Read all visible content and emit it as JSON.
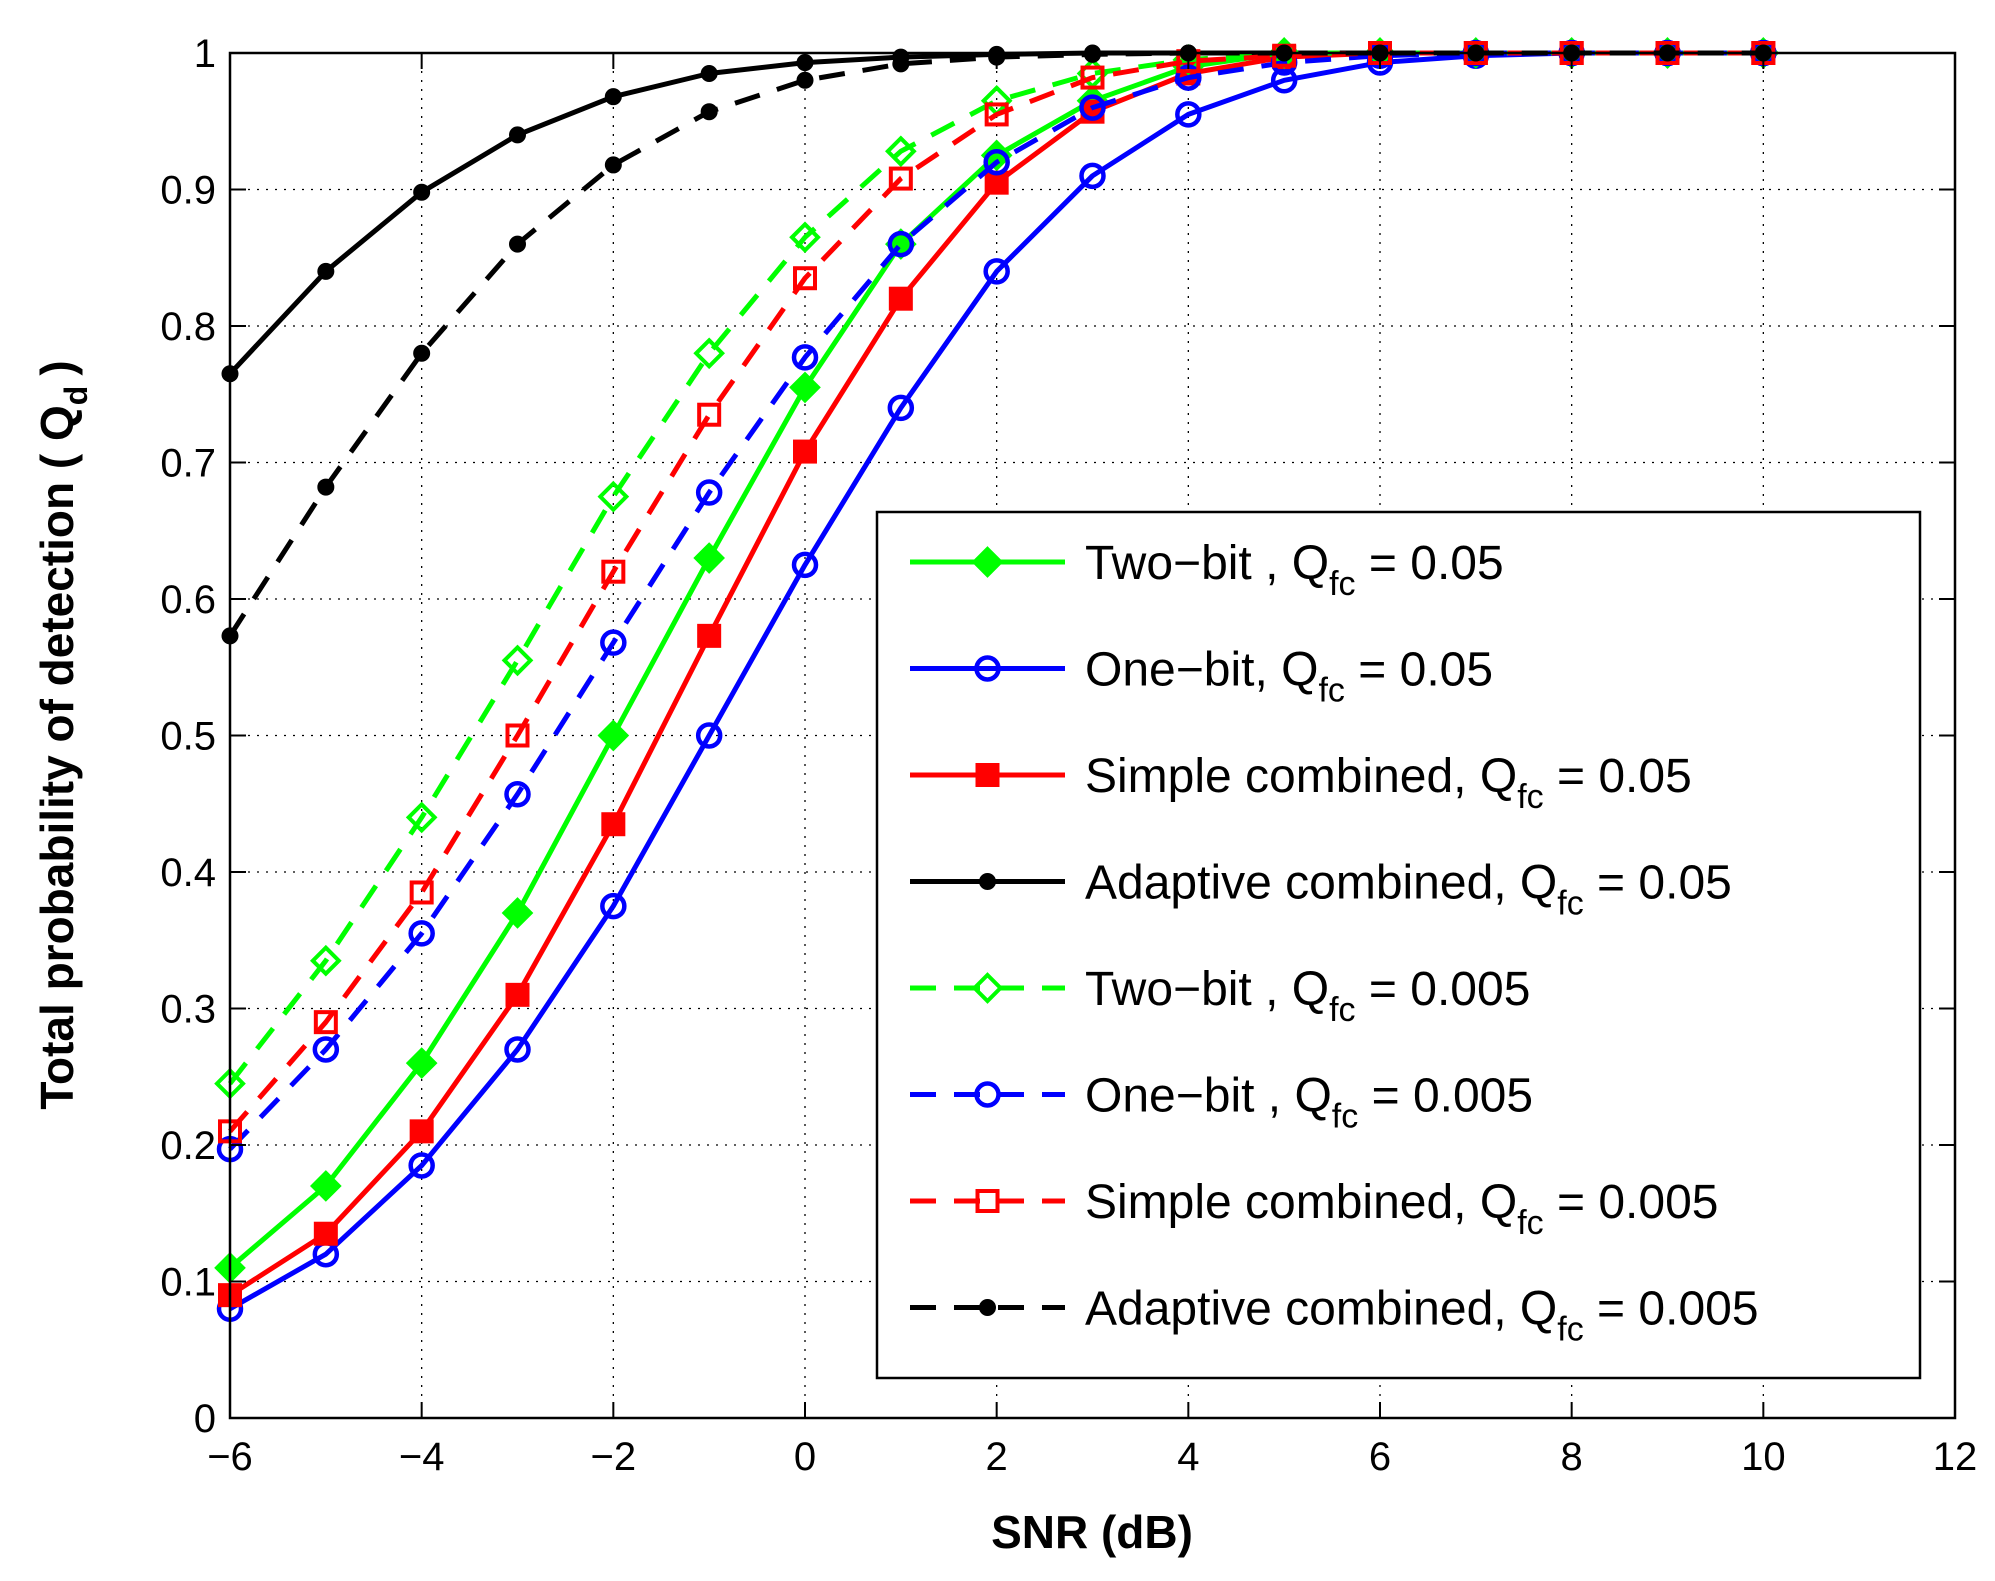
{
  "chart_data": {
    "type": "line",
    "xlabel": "SNR (dB)",
    "ylabel": "Total probability of detection ( Q",
    "ylabel_sub": "d",
    "ylabel_close": ")",
    "xlim": [
      -6,
      12
    ],
    "ylim": [
      0,
      1
    ],
    "grid": true,
    "legend_position": "lower-right",
    "xticks": [
      -6,
      -4,
      -2,
      0,
      2,
      4,
      6,
      8,
      10,
      12
    ],
    "xtick_labels": [
      "−6",
      "−4",
      "−2",
      "0",
      "2",
      "4",
      "6",
      "8",
      "10",
      "12"
    ],
    "yticks": [
      0,
      0.1,
      0.2,
      0.3,
      0.4,
      0.5,
      0.6,
      0.7,
      0.8,
      0.9,
      1
    ],
    "ytick_labels": [
      "0",
      "0.1",
      "0.2",
      "0.3",
      "0.4",
      "0.5",
      "0.6",
      "0.7",
      "0.8",
      "0.9",
      "1"
    ],
    "x": [
      -6,
      -5,
      -4,
      -3,
      -2,
      -1,
      0,
      1,
      2,
      3,
      4,
      5,
      6,
      7,
      8,
      9,
      10
    ],
    "series": [
      {
        "name": "Two−bit , Q",
        "sub": "fc",
        "tail": " = 0.05",
        "color": "#00ff00",
        "dash": "solid",
        "marker": "diamond-filled",
        "values": [
          0.11,
          0.17,
          0.26,
          0.37,
          0.5,
          0.63,
          0.755,
          0.86,
          0.925,
          0.965,
          0.99,
          1.0,
          1.0,
          1.0,
          1.0,
          1.0,
          1.0
        ]
      },
      {
        "name": "One−bit, Q",
        "sub": "fc",
        "tail": " = 0.05",
        "color": "#0000ff",
        "dash": "solid",
        "marker": "circle-open",
        "values": [
          0.08,
          0.12,
          0.185,
          0.27,
          0.375,
          0.5,
          0.625,
          0.74,
          0.84,
          0.91,
          0.955,
          0.98,
          0.993,
          0.998,
          1.0,
          1.0,
          1.0
        ]
      },
      {
        "name": "Simple combined, Q",
        "sub": "fc",
        "tail": " = 0.05",
        "color": "#ff0000",
        "dash": "solid",
        "marker": "square-filled",
        "values": [
          0.09,
          0.135,
          0.21,
          0.31,
          0.435,
          0.573,
          0.708,
          0.82,
          0.905,
          0.957,
          0.985,
          0.997,
          1.0,
          1.0,
          1.0,
          1.0,
          1.0
        ]
      },
      {
        "name": "Adaptive  combined, Q",
        "sub": "fc",
        "tail": " = 0.05",
        "color": "#000000",
        "dash": "solid",
        "marker": "dot-filled",
        "values": [
          0.765,
          0.84,
          0.898,
          0.94,
          0.968,
          0.985,
          0.993,
          0.997,
          0.999,
          1.0,
          1.0,
          1.0,
          1.0,
          1.0,
          1.0,
          1.0,
          1.0
        ]
      },
      {
        "name": "Two−bit , Q",
        "sub": "fc",
        "tail": " = 0.005",
        "color": "#00ff00",
        "dash": "dashed",
        "marker": "diamond-open",
        "values": [
          0.245,
          0.335,
          0.44,
          0.555,
          0.675,
          0.78,
          0.865,
          0.928,
          0.965,
          0.985,
          0.995,
          1.0,
          1.0,
          1.0,
          1.0,
          1.0,
          1.0
        ]
      },
      {
        "name": "One−bit ,  Q",
        "sub": "fc",
        "tail": " = 0.005",
        "color": "#0000ff",
        "dash": "dashed",
        "marker": "circle-open",
        "values": [
          0.197,
          0.27,
          0.355,
          0.457,
          0.568,
          0.678,
          0.777,
          0.86,
          0.92,
          0.96,
          0.982,
          0.993,
          0.998,
          1.0,
          1.0,
          1.0,
          1.0
        ]
      },
      {
        "name": "Simple combined, Q",
        "sub": "fc",
        "tail": " = 0.005",
        "color": "#ff0000",
        "dash": "dashed",
        "marker": "square-open",
        "values": [
          0.21,
          0.29,
          0.385,
          0.5,
          0.62,
          0.735,
          0.835,
          0.908,
          0.955,
          0.982,
          0.994,
          0.998,
          1.0,
          1.0,
          1.0,
          1.0,
          1.0
        ]
      },
      {
        "name": "Adaptive combined, Q",
        "sub": "fc",
        "tail": " = 0.005",
        "color": "#000000",
        "dash": "dashed",
        "marker": "dot-filled",
        "values": [
          0.573,
          0.682,
          0.78,
          0.86,
          0.918,
          0.957,
          0.98,
          0.992,
          0.997,
          0.999,
          1.0,
          1.0,
          1.0,
          1.0,
          1.0,
          1.0,
          1.0
        ]
      }
    ]
  }
}
